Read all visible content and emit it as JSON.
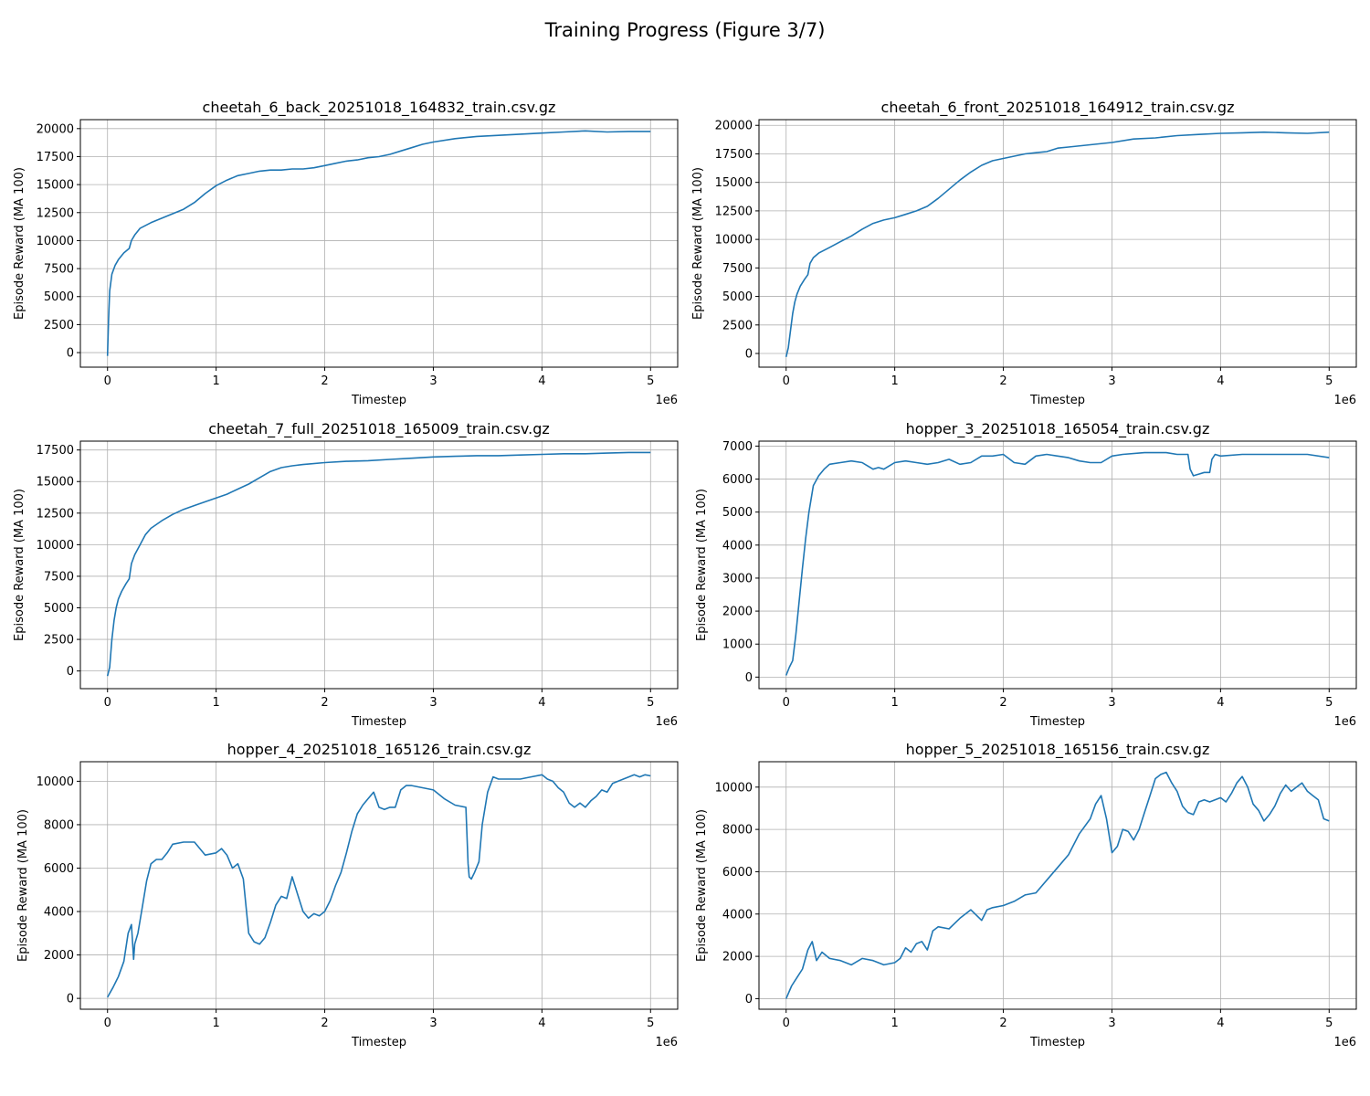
{
  "figure": {
    "suptitle": "Training Progress (Figure 3/7)"
  },
  "chart_data": [
    {
      "type": "line",
      "title": "cheetah_6_back_20251018_164832_train.csv.gz",
      "xlabel": "Timestep",
      "ylabel": "Episode Reward (MA 100)",
      "x_multiplier_label": "1e6",
      "x_ticks": [
        0,
        1,
        2,
        3,
        4,
        5
      ],
      "y_ticks": [
        0,
        2500,
        5000,
        7500,
        10000,
        12500,
        15000,
        17500,
        20000
      ],
      "xlim": [
        -0.25,
        5.25
      ],
      "ylim": [
        -1300,
        20800
      ],
      "grid": true,
      "series": [
        {
          "color": "#1f77b4",
          "x": [
            0,
            0.01,
            0.02,
            0.04,
            0.07,
            0.1,
            0.15,
            0.2,
            0.22,
            0.25,
            0.3,
            0.4,
            0.5,
            0.6,
            0.7,
            0.8,
            0.9,
            1.0,
            1.1,
            1.2,
            1.3,
            1.4,
            1.5,
            1.6,
            1.7,
            1.8,
            1.9,
            2.0,
            2.1,
            2.2,
            2.3,
            2.4,
            2.5,
            2.6,
            2.7,
            2.8,
            2.9,
            3.0,
            3.2,
            3.4,
            3.6,
            3.8,
            4.0,
            4.2,
            4.4,
            4.6,
            4.8,
            5.0
          ],
          "y": [
            -300,
            3000,
            5500,
            7000,
            7800,
            8300,
            8900,
            9300,
            10000,
            10500,
            11100,
            11600,
            12000,
            12400,
            12800,
            13400,
            14200,
            14900,
            15400,
            15800,
            16000,
            16200,
            16300,
            16300,
            16400,
            16400,
            16500,
            16700,
            16900,
            17100,
            17200,
            17400,
            17500,
            17700,
            18000,
            18300,
            18600,
            18800,
            19100,
            19300,
            19400,
            19500,
            19600,
            19700,
            19800,
            19700,
            19750,
            19750
          ]
        }
      ]
    },
    {
      "type": "line",
      "title": "cheetah_6_front_20251018_164912_train.csv.gz",
      "xlabel": "Timestep",
      "ylabel": "Episode Reward (MA 100)",
      "x_multiplier_label": "1e6",
      "x_ticks": [
        0,
        1,
        2,
        3,
        4,
        5
      ],
      "y_ticks": [
        0,
        2500,
        5000,
        7500,
        10000,
        12500,
        15000,
        17500,
        20000
      ],
      "xlim": [
        -0.25,
        5.25
      ],
      "ylim": [
        -1200,
        20500
      ],
      "grid": true,
      "series": [
        {
          "color": "#1f77b4",
          "x": [
            0,
            0.02,
            0.04,
            0.06,
            0.08,
            0.1,
            0.13,
            0.17,
            0.2,
            0.22,
            0.25,
            0.3,
            0.4,
            0.5,
            0.6,
            0.7,
            0.8,
            0.9,
            1.0,
            1.1,
            1.2,
            1.3,
            1.4,
            1.5,
            1.6,
            1.7,
            1.8,
            1.9,
            2.0,
            2.1,
            2.2,
            2.3,
            2.4,
            2.5,
            2.6,
            2.8,
            3.0,
            3.2,
            3.4,
            3.6,
            3.8,
            4.0,
            4.2,
            4.4,
            4.6,
            4.8,
            5.0
          ],
          "y": [
            -300,
            500,
            2000,
            3500,
            4500,
            5200,
            5900,
            6500,
            6900,
            7900,
            8400,
            8800,
            9300,
            9800,
            10300,
            10900,
            11400,
            11700,
            11900,
            12200,
            12500,
            12900,
            13600,
            14400,
            15200,
            15900,
            16500,
            16900,
            17100,
            17300,
            17500,
            17600,
            17700,
            18000,
            18100,
            18300,
            18500,
            18800,
            18900,
            19100,
            19200,
            19300,
            19350,
            19400,
            19350,
            19300,
            19400
          ]
        }
      ]
    },
    {
      "type": "line",
      "title": "cheetah_7_full_20251018_165009_train.csv.gz",
      "xlabel": "Timestep",
      "ylabel": "Episode Reward (MA 100)",
      "x_multiplier_label": "1e6",
      "x_ticks": [
        0,
        1,
        2,
        3,
        4,
        5
      ],
      "y_ticks": [
        0,
        2500,
        5000,
        7500,
        10000,
        12500,
        15000,
        17500
      ],
      "xlim": [
        -0.25,
        5.25
      ],
      "ylim": [
        -1400,
        18200
      ],
      "grid": true,
      "series": [
        {
          "color": "#1f77b4",
          "x": [
            0,
            0.02,
            0.04,
            0.06,
            0.08,
            0.1,
            0.13,
            0.17,
            0.2,
            0.22,
            0.25,
            0.3,
            0.35,
            0.4,
            0.5,
            0.6,
            0.7,
            0.8,
            0.9,
            1.0,
            1.1,
            1.2,
            1.3,
            1.4,
            1.5,
            1.6,
            1.7,
            1.8,
            2.0,
            2.2,
            2.4,
            2.6,
            2.8,
            3.0,
            3.2,
            3.4,
            3.6,
            3.8,
            4.0,
            4.2,
            4.4,
            4.6,
            4.8,
            5.0
          ],
          "y": [
            -400,
            300,
            2500,
            4000,
            5000,
            5700,
            6300,
            6900,
            7300,
            8500,
            9200,
            10000,
            10800,
            11300,
            11900,
            12400,
            12800,
            13100,
            13400,
            13700,
            14000,
            14400,
            14800,
            15300,
            15800,
            16100,
            16250,
            16350,
            16500,
            16600,
            16650,
            16750,
            16850,
            16950,
            17000,
            17050,
            17050,
            17100,
            17150,
            17200,
            17200,
            17250,
            17300,
            17300
          ]
        }
      ]
    },
    {
      "type": "line",
      "title": "hopper_3_20251018_165054_train.csv.gz",
      "xlabel": "Timestep",
      "ylabel": "Episode Reward (MA 100)",
      "x_multiplier_label": "1e6",
      "x_ticks": [
        0,
        1,
        2,
        3,
        4,
        5
      ],
      "y_ticks": [
        0,
        1000,
        2000,
        3000,
        4000,
        5000,
        6000,
        7000
      ],
      "xlim": [
        -0.25,
        5.25
      ],
      "ylim": [
        -350,
        7150
      ],
      "grid": true,
      "series": [
        {
          "color": "#1f77b4",
          "x": [
            0,
            0.03,
            0.06,
            0.09,
            0.12,
            0.15,
            0.18,
            0.21,
            0.25,
            0.3,
            0.35,
            0.4,
            0.5,
            0.6,
            0.7,
            0.75,
            0.8,
            0.85,
            0.9,
            0.95,
            1.0,
            1.1,
            1.2,
            1.3,
            1.4,
            1.5,
            1.6,
            1.7,
            1.8,
            1.9,
            2.0,
            2.1,
            2.2,
            2.3,
            2.4,
            2.5,
            2.6,
            2.7,
            2.8,
            2.9,
            3.0,
            3.1,
            3.3,
            3.5,
            3.6,
            3.7,
            3.72,
            3.75,
            3.8,
            3.85,
            3.9,
            3.92,
            3.95,
            4.0,
            4.2,
            4.4,
            4.6,
            4.8,
            5.0
          ],
          "y": [
            50,
            300,
            500,
            1300,
            2300,
            3300,
            4200,
            5000,
            5800,
            6100,
            6300,
            6450,
            6500,
            6550,
            6500,
            6400,
            6300,
            6350,
            6300,
            6400,
            6500,
            6550,
            6500,
            6450,
            6500,
            6600,
            6450,
            6500,
            6700,
            6700,
            6750,
            6500,
            6450,
            6700,
            6750,
            6700,
            6650,
            6550,
            6500,
            6500,
            6700,
            6750,
            6800,
            6800,
            6750,
            6750,
            6300,
            6100,
            6150,
            6200,
            6200,
            6600,
            6750,
            6700,
            6750,
            6750,
            6750,
            6750,
            6650
          ]
        }
      ]
    },
    {
      "type": "line",
      "title": "hopper_4_20251018_165126_train.csv.gz",
      "xlabel": "Timestep",
      "ylabel": "Episode Reward (MA 100)",
      "x_multiplier_label": "1e6",
      "x_ticks": [
        0,
        1,
        2,
        3,
        4,
        5
      ],
      "y_ticks": [
        0,
        2000,
        4000,
        6000,
        8000,
        10000
      ],
      "xlim": [
        -0.25,
        5.25
      ],
      "ylim": [
        -500,
        10900
      ],
      "grid": true,
      "series": [
        {
          "color": "#1f77b4",
          "x": [
            0,
            0.05,
            0.1,
            0.15,
            0.19,
            0.22,
            0.24,
            0.25,
            0.28,
            0.32,
            0.36,
            0.4,
            0.45,
            0.5,
            0.55,
            0.6,
            0.7,
            0.8,
            0.85,
            0.9,
            1.0,
            1.05,
            1.1,
            1.15,
            1.2,
            1.25,
            1.3,
            1.35,
            1.4,
            1.45,
            1.5,
            1.55,
            1.6,
            1.65,
            1.7,
            1.75,
            1.8,
            1.85,
            1.9,
            1.95,
            2.0,
            2.05,
            2.1,
            2.15,
            2.2,
            2.25,
            2.3,
            2.35,
            2.4,
            2.45,
            2.5,
            2.55,
            2.6,
            2.65,
            2.7,
            2.75,
            2.8,
            2.9,
            3.0,
            3.1,
            3.2,
            3.3,
            3.32,
            3.33,
            3.35,
            3.38,
            3.42,
            3.45,
            3.5,
            3.55,
            3.6,
            3.7,
            3.8,
            3.9,
            4.0,
            4.05,
            4.1,
            4.15,
            4.2,
            4.25,
            4.3,
            4.35,
            4.4,
            4.45,
            4.5,
            4.55,
            4.6,
            4.65,
            4.7,
            4.75,
            4.8,
            4.85,
            4.9,
            4.95,
            5.0
          ],
          "y": [
            50,
            500,
            1000,
            1700,
            3000,
            3400,
            1800,
            2500,
            3000,
            4200,
            5400,
            6200,
            6400,
            6400,
            6700,
            7100,
            7200,
            7200,
            6900,
            6600,
            6700,
            6900,
            6600,
            6000,
            6200,
            5500,
            3000,
            2600,
            2500,
            2800,
            3500,
            4300,
            4700,
            4600,
            5600,
            4800,
            4000,
            3700,
            3900,
            3800,
            4000,
            4500,
            5200,
            5800,
            6700,
            7700,
            8500,
            8900,
            9200,
            9500,
            8800,
            8700,
            8800,
            8800,
            9600,
            9800,
            9800,
            9700,
            9600,
            9200,
            8900,
            8800,
            6200,
            5600,
            5500,
            5800,
            6300,
            8000,
            9500,
            10200,
            10100,
            10100,
            10100,
            10200,
            10300,
            10100,
            10000,
            9700,
            9500,
            9000,
            8800,
            9000,
            8800,
            9100,
            9300,
            9600,
            9500,
            9900,
            10000,
            10100,
            10200,
            10300,
            10200,
            10300,
            10250
          ]
        }
      ]
    },
    {
      "type": "line",
      "title": "hopper_5_20251018_165156_train.csv.gz",
      "xlabel": "Timestep",
      "ylabel": "Episode Reward (MA 100)",
      "x_multiplier_label": "1e6",
      "x_ticks": [
        0,
        1,
        2,
        3,
        4,
        5
      ],
      "y_ticks": [
        0,
        2000,
        4000,
        6000,
        8000,
        10000
      ],
      "xlim": [
        -0.25,
        5.25
      ],
      "ylim": [
        -500,
        11200
      ],
      "grid": true,
      "series": [
        {
          "color": "#1f77b4",
          "x": [
            0,
            0.05,
            0.1,
            0.15,
            0.2,
            0.24,
            0.28,
            0.33,
            0.4,
            0.5,
            0.6,
            0.7,
            0.8,
            0.9,
            1.0,
            1.05,
            1.1,
            1.15,
            1.2,
            1.25,
            1.3,
            1.35,
            1.4,
            1.5,
            1.6,
            1.7,
            1.8,
            1.85,
            1.9,
            2.0,
            2.1,
            2.2,
            2.3,
            2.4,
            2.5,
            2.6,
            2.7,
            2.8,
            2.85,
            2.9,
            2.95,
            3.0,
            3.05,
            3.1,
            3.15,
            3.2,
            3.25,
            3.3,
            3.35,
            3.4,
            3.45,
            3.5,
            3.55,
            3.6,
            3.65,
            3.7,
            3.75,
            3.8,
            3.85,
            3.9,
            4.0,
            4.05,
            4.1,
            4.15,
            4.2,
            4.25,
            4.3,
            4.35,
            4.4,
            4.45,
            4.5,
            4.55,
            4.6,
            4.65,
            4.7,
            4.75,
            4.8,
            4.85,
            4.9,
            4.95,
            5.0
          ],
          "y": [
            0,
            600,
            1000,
            1400,
            2300,
            2700,
            1800,
            2200,
            1900,
            1800,
            1600,
            1900,
            1800,
            1600,
            1700,
            1900,
            2400,
            2200,
            2600,
            2700,
            2300,
            3200,
            3400,
            3300,
            3800,
            4200,
            3700,
            4200,
            4300,
            4400,
            4600,
            4900,
            5000,
            5600,
            6200,
            6800,
            7800,
            8500,
            9200,
            9600,
            8500,
            6900,
            7200,
            8000,
            7900,
            7500,
            8000,
            8800,
            9600,
            10400,
            10600,
            10700,
            10200,
            9800,
            9100,
            8800,
            8700,
            9300,
            9400,
            9300,
            9500,
            9300,
            9700,
            10200,
            10500,
            10000,
            9200,
            8900,
            8400,
            8700,
            9100,
            9700,
            10100,
            9800,
            10000,
            10200,
            9800,
            9600,
            9400,
            8500,
            8400
          ]
        }
      ]
    }
  ]
}
